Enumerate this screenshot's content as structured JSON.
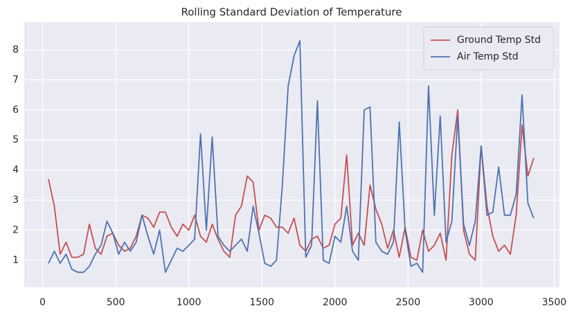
{
  "chart_data": {
    "type": "line",
    "title": "Rolling Standard Deviation of Temperature",
    "x": [
      40,
      80,
      120,
      160,
      200,
      240,
      280,
      320,
      360,
      400,
      440,
      480,
      520,
      560,
      600,
      640,
      680,
      720,
      760,
      800,
      840,
      880,
      920,
      960,
      1000,
      1040,
      1080,
      1120,
      1160,
      1200,
      1240,
      1280,
      1320,
      1360,
      1400,
      1440,
      1480,
      1520,
      1560,
      1600,
      1640,
      1680,
      1720,
      1760,
      1800,
      1840,
      1880,
      1920,
      1960,
      2000,
      2040,
      2080,
      2120,
      2160,
      2200,
      2240,
      2280,
      2320,
      2360,
      2400,
      2440,
      2480,
      2520,
      2560,
      2600,
      2640,
      2680,
      2720,
      2760,
      2800,
      2840,
      2880,
      2920,
      2960,
      3000,
      3040,
      3080,
      3120,
      3160,
      3200,
      3240,
      3280,
      3320,
      3360
    ],
    "series": [
      {
        "name": "Ground Temp Std",
        "color": "#c44e52",
        "values": [
          3.7,
          2.8,
          1.2,
          1.6,
          1.1,
          1.1,
          1.2,
          2.2,
          1.4,
          1.2,
          1.8,
          1.9,
          1.5,
          1.3,
          1.4,
          1.8,
          2.5,
          2.4,
          2.1,
          2.6,
          2.6,
          2.1,
          1.8,
          2.2,
          2.0,
          2.5,
          1.8,
          1.6,
          2.2,
          1.7,
          1.3,
          1.1,
          2.5,
          2.8,
          3.8,
          3.6,
          2.0,
          2.5,
          2.4,
          2.1,
          2.1,
          1.9,
          2.4,
          1.5,
          1.3,
          1.7,
          1.8,
          1.4,
          1.5,
          2.2,
          2.4,
          4.5,
          1.5,
          1.9,
          1.5,
          3.5,
          2.7,
          2.2,
          1.4,
          2.0,
          1.1,
          2.1,
          1.1,
          1.0,
          2.0,
          1.3,
          1.5,
          1.9,
          1.0,
          4.5,
          6.0,
          2.0,
          1.2,
          1.0,
          4.8,
          2.8,
          1.8,
          1.3,
          1.5,
          1.2,
          2.5,
          5.5,
          3.8,
          4.4
        ]
      },
      {
        "name": "Air Temp Std",
        "color": "#4c72b0",
        "values": [
          0.9,
          1.3,
          0.9,
          1.2,
          0.7,
          0.6,
          0.6,
          0.8,
          1.2,
          1.5,
          2.3,
          1.9,
          1.2,
          1.6,
          1.3,
          1.6,
          2.5,
          1.8,
          1.2,
          2.0,
          0.6,
          1.0,
          1.4,
          1.3,
          1.5,
          1.7,
          5.2,
          2.0,
          5.1,
          1.8,
          1.5,
          1.3,
          1.5,
          1.7,
          1.3,
          2.8,
          1.9,
          0.9,
          0.8,
          1.0,
          3.5,
          6.8,
          7.8,
          8.3,
          1.1,
          1.5,
          6.3,
          1.0,
          0.9,
          1.8,
          1.6,
          2.8,
          1.3,
          1.0,
          6.0,
          6.1,
          1.6,
          1.3,
          1.2,
          1.6,
          5.6,
          2.0,
          0.8,
          0.9,
          0.6,
          6.8,
          2.5,
          5.8,
          1.6,
          2.3,
          5.8,
          2.2,
          1.5,
          2.3,
          4.8,
          2.5,
          2.6,
          4.1,
          2.5,
          2.5,
          3.2,
          6.5,
          2.9,
          2.4
        ]
      }
    ],
    "xlim": [
      -126,
      3536
    ],
    "xticks": [
      0,
      500,
      1000,
      1500,
      2000,
      2500,
      3000,
      3500
    ],
    "ylim": [
      0.1,
      8.92
    ],
    "yticks": [
      1,
      2,
      3,
      4,
      5,
      6,
      7,
      8
    ],
    "grid": true,
    "legend": "upper right"
  }
}
